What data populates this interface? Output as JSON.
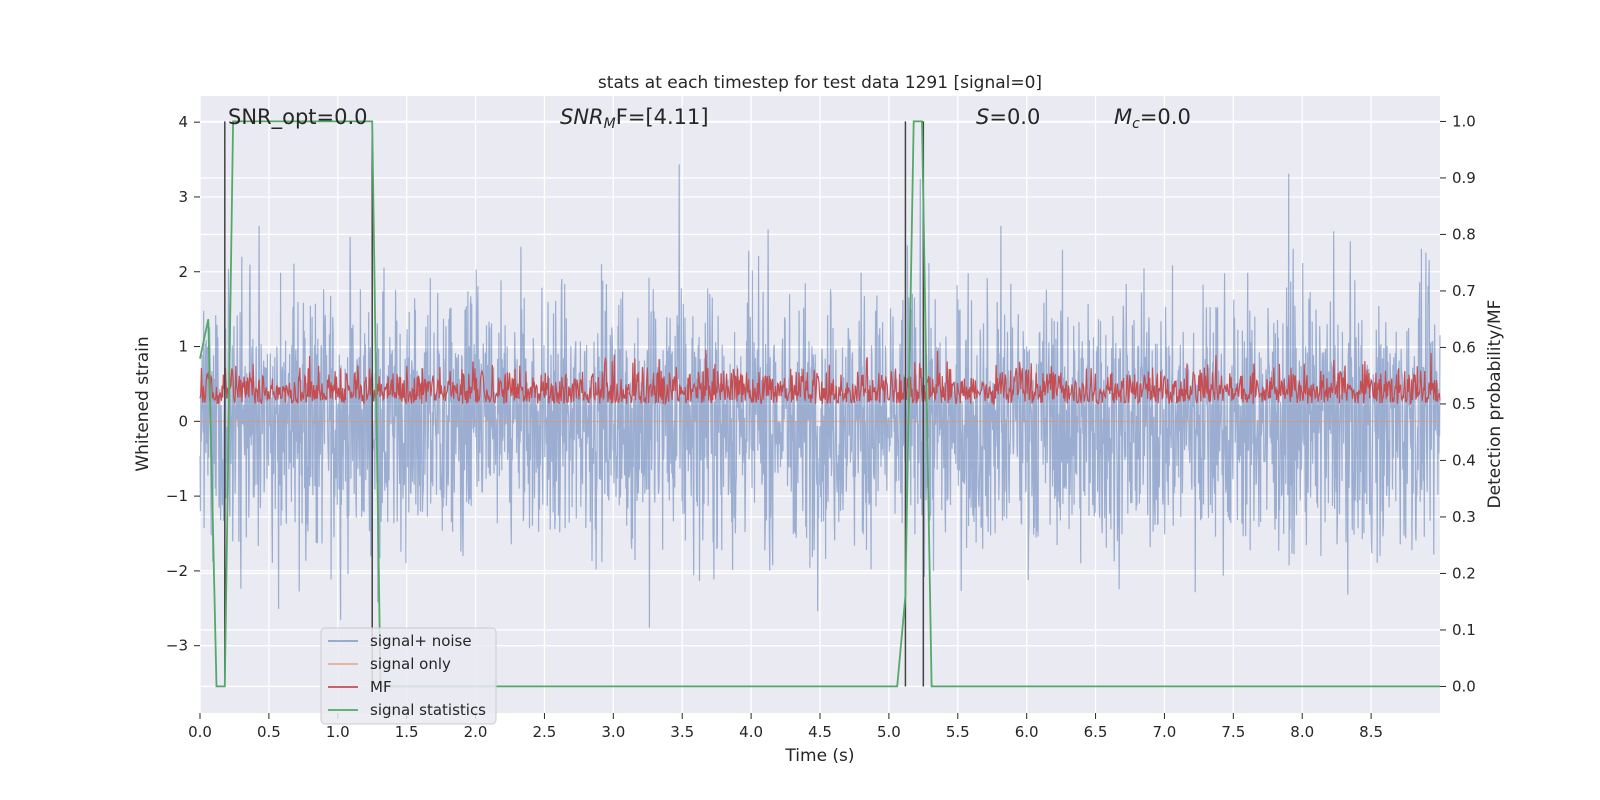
{
  "chart_data": {
    "type": "line",
    "title": "stats at each timestep for test data 1291 [signal=0]",
    "xlabel": "Time (s)",
    "ylabel_left": "Whitened strain",
    "ylabel_right": "Detection probability/MF",
    "xlim": [
      0.0,
      9.0
    ],
    "ylim_left": [
      -3.9,
      4.35
    ],
    "ylim_right": [
      -0.047,
      1.045
    ],
    "xticks": [
      0.0,
      0.5,
      1.0,
      1.5,
      2.0,
      2.5,
      3.0,
      3.5,
      4.0,
      4.5,
      5.0,
      5.5,
      6.0,
      6.5,
      7.0,
      7.5,
      8.0,
      8.5
    ],
    "xtick_labels": [
      "0.0",
      "0.5",
      "1.0",
      "1.5",
      "2.0",
      "2.5",
      "3.0",
      "3.5",
      "4.0",
      "4.5",
      "5.0",
      "5.5",
      "6.0",
      "6.5",
      "7.0",
      "7.5",
      "8.0",
      "8.5"
    ],
    "yticks_left": [
      -3,
      -2,
      -1,
      0,
      1,
      2,
      3,
      4
    ],
    "ytick_labels_left": [
      "−3",
      "−2",
      "−1",
      "0",
      "1",
      "2",
      "3",
      "4"
    ],
    "yticks_right": [
      0.0,
      0.1,
      0.2,
      0.3,
      0.4,
      0.5,
      0.6,
      0.7,
      0.8,
      0.9,
      1.0
    ],
    "ytick_labels_right": [
      "0.0",
      "0.1",
      "0.2",
      "0.3",
      "0.4",
      "0.5",
      "0.6",
      "0.7",
      "0.8",
      "0.9",
      "1.0"
    ],
    "grid": true,
    "legend_position": "lower-left",
    "annotations": {
      "snr_opt": "SNR_opt=0.0",
      "snr_mf_sym": "SNR",
      "snr_mf_sub": "M",
      "snr_mf_rest": "F=[4.11]",
      "s_sym": "S",
      "s_rest": "=0.0",
      "mc_sym": "M",
      "mc_sub": "c",
      "mc_rest": "=0.0"
    },
    "series": [
      {
        "name": "signal+ noise",
        "color": "#4c72b0",
        "axis": "left",
        "values_shown": "noise trace, approx. range -3.6 to 4.0 (whitened strain)"
      },
      {
        "name": "signal only",
        "color": "#dd8452",
        "axis": "left",
        "values": "0 everywhere"
      },
      {
        "name": "MF",
        "color": "#c44e52",
        "axis": "right",
        "values_shown": "approx. 0.50 to 0.60"
      },
      {
        "name": "signal statistics",
        "color": "#55a868",
        "axis": "right",
        "x": [
          0.0,
          0.06,
          0.12,
          0.18,
          0.24,
          1.25,
          1.31,
          5.06,
          5.12,
          5.18,
          5.24,
          5.31,
          9.0
        ],
        "y": [
          0.58,
          0.65,
          0.0,
          0.0,
          1.0,
          1.0,
          0.0,
          0.0,
          0.16,
          1.0,
          1.0,
          0.0,
          0.0
        ]
      }
    ],
    "vertical_lines_x": [
      0.18,
      1.25,
      5.12,
      5.25
    ]
  }
}
